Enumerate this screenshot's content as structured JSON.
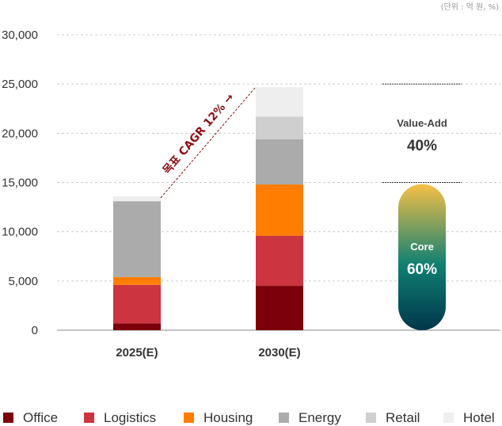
{
  "chart_data": {
    "type": "bar",
    "stacked": true,
    "unit_note": "(단위 : 억 원, %)",
    "categories": [
      "2025(E)",
      "2030(E)"
    ],
    "ylim": [
      0,
      30000
    ],
    "yticks": [
      "0",
      "5,000",
      "10,000",
      "15,000",
      "20,000",
      "25,000",
      "30,000"
    ],
    "ytick_values": [
      0,
      5000,
      10000,
      15000,
      20000,
      25000,
      30000
    ],
    "grid": true,
    "legend_position": "bottom",
    "series": [
      {
        "name": "Office",
        "color": "#7b000b",
        "values": [
          700,
          4500
        ]
      },
      {
        "name": "Logistics",
        "color": "#cc343f",
        "values": [
          3900,
          5100
        ]
      },
      {
        "name": "Housing",
        "color": "#ff7d00",
        "values": [
          800,
          5200
        ]
      },
      {
        "name": "Energy",
        "color": "#ababab",
        "values": [
          7700,
          4600
        ]
      },
      {
        "name": "Retail",
        "color": "#cfcfcf",
        "values": [
          0,
          2300
        ]
      },
      {
        "name": "Hotel",
        "color": "#eeeeee",
        "values": [
          500,
          3000
        ]
      }
    ],
    "annotation": {
      "text": "목표 CAGR 12% →",
      "color": "#8b0f14"
    },
    "allocation": {
      "value_add": {
        "label": "Value-Add",
        "pct": "40%"
      },
      "core": {
        "label": "Core",
        "pct": "60%"
      },
      "split_value": 15000,
      "top_value": 25000,
      "gradient_colors": [
        "#f7c046",
        "#0f8072",
        "#00364a"
      ]
    }
  }
}
